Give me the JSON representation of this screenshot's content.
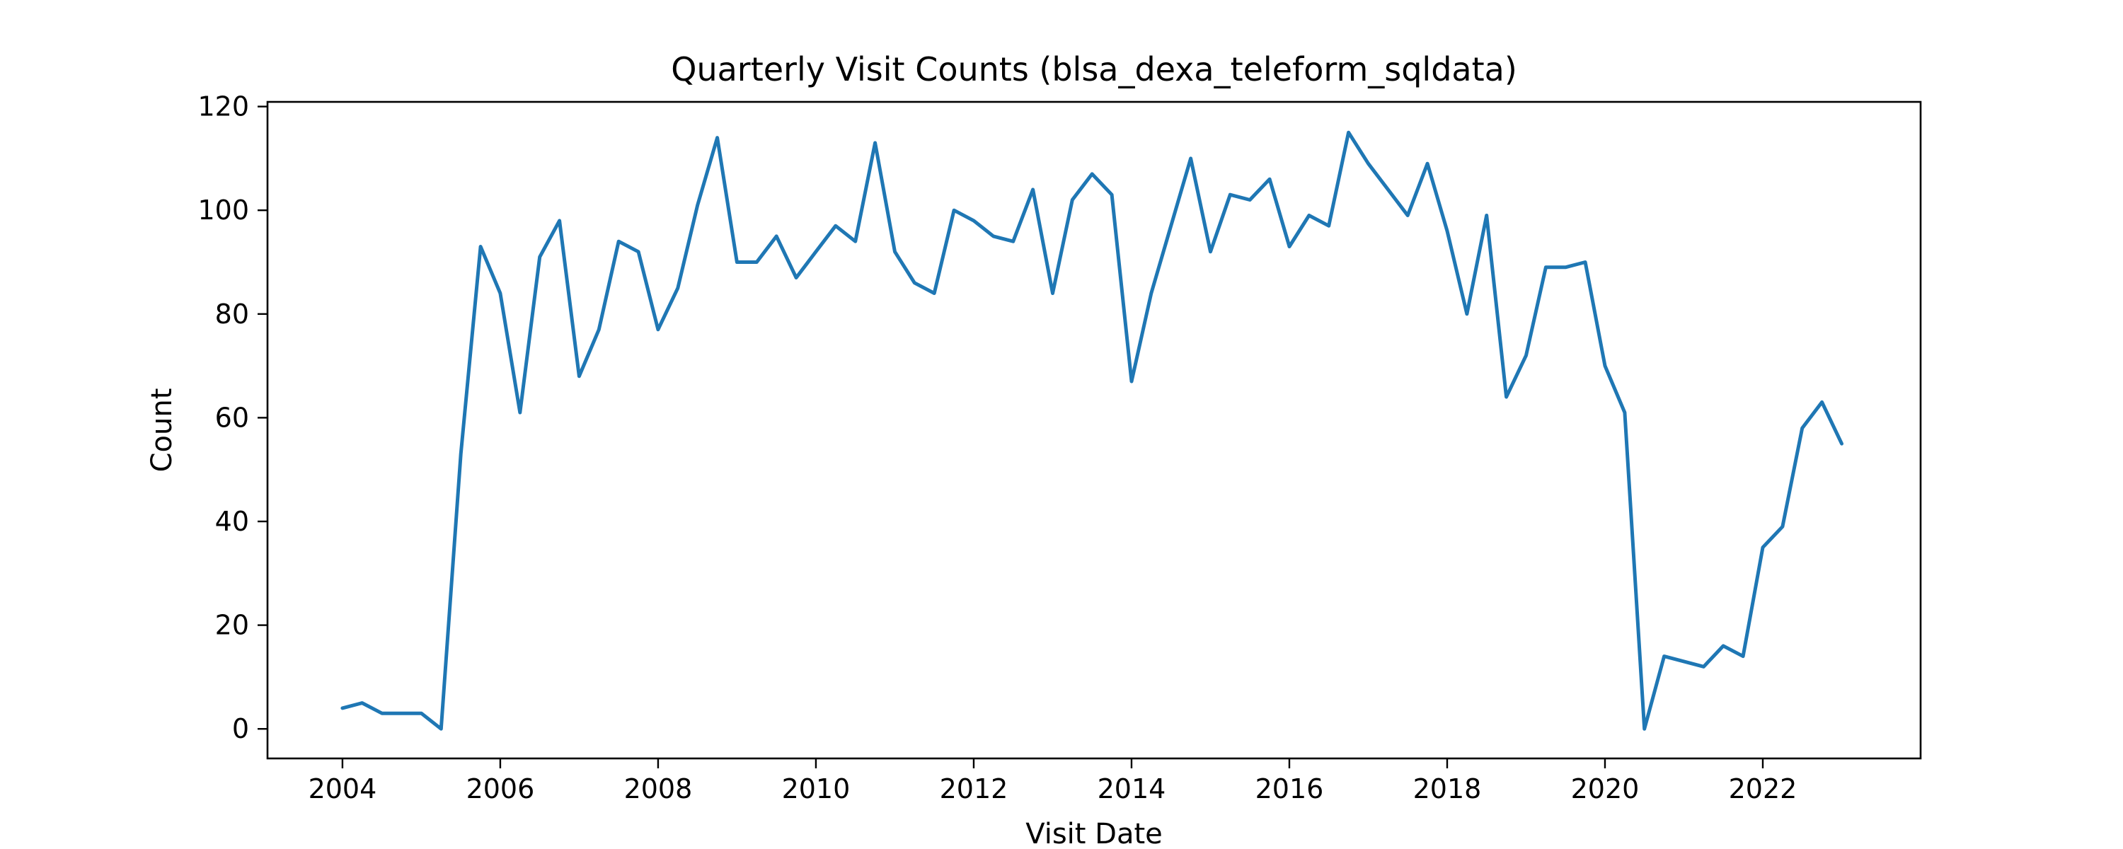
{
  "chart_data": {
    "type": "line",
    "title": "Quarterly Visit Counts (blsa_dexa_teleform_sqldata)",
    "xlabel": "Visit Date",
    "ylabel": "Count",
    "xlim": [
      2003.05,
      2024.0
    ],
    "ylim": [
      -5.7,
      120.9
    ],
    "x_ticks": [
      2004,
      2006,
      2008,
      2010,
      2012,
      2014,
      2016,
      2018,
      2020,
      2022
    ],
    "x_tick_labels": [
      "2004",
      "2006",
      "2008",
      "2010",
      "2012",
      "2014",
      "2016",
      "2018",
      "2020",
      "2022"
    ],
    "y_ticks": [
      0,
      20,
      40,
      60,
      80,
      100,
      120
    ],
    "y_tick_labels": [
      "0",
      "20",
      "40",
      "60",
      "80",
      "100",
      "120"
    ],
    "grid": false,
    "series": [
      {
        "color": "#1f77b4",
        "x": [
          2004.0,
          2004.25,
          2004.5,
          2004.75,
          2005.0,
          2005.25,
          2005.5,
          2005.75,
          2006.0,
          2006.25,
          2006.5,
          2006.75,
          2007.0,
          2007.25,
          2007.5,
          2007.75,
          2008.0,
          2008.25,
          2008.5,
          2008.75,
          2009.0,
          2009.25,
          2009.5,
          2009.75,
          2010.0,
          2010.25,
          2010.5,
          2010.75,
          2011.0,
          2011.25,
          2011.5,
          2011.75,
          2012.0,
          2012.25,
          2012.5,
          2012.75,
          2013.0,
          2013.25,
          2013.5,
          2013.75,
          2014.0,
          2014.25,
          2014.5,
          2014.75,
          2015.0,
          2015.25,
          2015.5,
          2015.75,
          2016.0,
          2016.25,
          2016.5,
          2016.75,
          2017.0,
          2017.25,
          2017.5,
          2017.75,
          2018.0,
          2018.25,
          2018.5,
          2018.75,
          2019.0,
          2019.25,
          2019.5,
          2019.75,
          2020.0,
          2020.25,
          2020.5,
          2020.75,
          2021.0,
          2021.25,
          2021.5,
          2021.75,
          2022.0,
          2022.25,
          2022.5,
          2022.75,
          2023.0
        ],
        "values": [
          4,
          5,
          3,
          3,
          3,
          0,
          53,
          93,
          84,
          61,
          91,
          98,
          68,
          77,
          94,
          92,
          77,
          85,
          101,
          114,
          90,
          90,
          95,
          87,
          92,
          97,
          94,
          113,
          92,
          86,
          84,
          100,
          98,
          95,
          94,
          104,
          84,
          102,
          107,
          103,
          67,
          84,
          97,
          110,
          92,
          103,
          102,
          106,
          93,
          99,
          97,
          115,
          109,
          104,
          99,
          109,
          96,
          80,
          99,
          64,
          72,
          89,
          89,
          90,
          70,
          61,
          0,
          14,
          13,
          12,
          16,
          14,
          35,
          39,
          58,
          63,
          55
        ]
      }
    ]
  }
}
